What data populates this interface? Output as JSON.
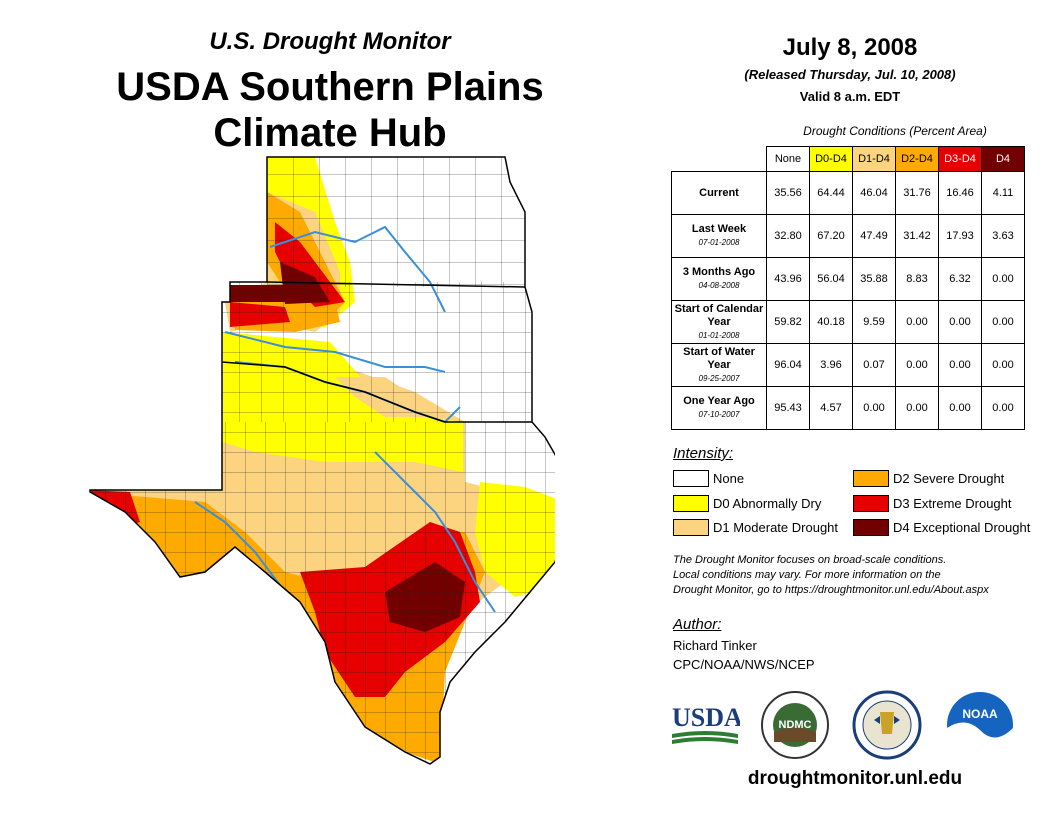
{
  "header": {
    "subtitle": "U.S. Drought Monitor",
    "title_line1": "USDA Southern Plains",
    "title_line2": "Climate Hub"
  },
  "date": "July 8, 2008",
  "released": "(Released Thursday, Jul. 10, 2008)",
  "valid": "Valid 8 a.m. EDT",
  "table": {
    "caption": "Drought Conditions (Percent Area)",
    "columns": [
      "None",
      "D0-D4",
      "D1-D4",
      "D2-D4",
      "D3-D4",
      "D4"
    ],
    "column_colors": [
      "#ffffff",
      "#ffff00",
      "#fcd37f",
      "#ffaa00",
      "#e60000",
      "#730000"
    ],
    "rows": [
      {
        "label": "Current",
        "date": "",
        "values": [
          "35.56",
          "64.44",
          "46.04",
          "31.76",
          "16.46",
          "4.11"
        ]
      },
      {
        "label": "Last Week",
        "date": "07-01-2008",
        "values": [
          "32.80",
          "67.20",
          "47.49",
          "31.42",
          "17.93",
          "3.63"
        ]
      },
      {
        "label": "3 Months Ago",
        "date": "04-08-2008",
        "values": [
          "43.96",
          "56.04",
          "35.88",
          "8.83",
          "6.32",
          "0.00"
        ]
      },
      {
        "label": "Start of Calendar Year",
        "date": "01-01-2008",
        "values": [
          "59.82",
          "40.18",
          "9.59",
          "0.00",
          "0.00",
          "0.00"
        ]
      },
      {
        "label": "Start of Water Year",
        "date": "09-25-2007",
        "values": [
          "96.04",
          "3.96",
          "0.07",
          "0.00",
          "0.00",
          "0.00"
        ]
      },
      {
        "label": "One Year Ago",
        "date": "07-10-2007",
        "values": [
          "95.43",
          "4.57",
          "0.00",
          "0.00",
          "0.00",
          "0.00"
        ]
      }
    ]
  },
  "legend": {
    "title": "Intensity:",
    "items": [
      {
        "label": "None",
        "color": "#ffffff"
      },
      {
        "label": "D0 Abnormally Dry",
        "color": "#ffff00"
      },
      {
        "label": "D1 Moderate Drought",
        "color": "#fcd37f"
      },
      {
        "label": "D2 Severe Drought",
        "color": "#ffaa00"
      },
      {
        "label": "D3 Extreme Drought",
        "color": "#e60000"
      },
      {
        "label": "D4 Exceptional Drought",
        "color": "#730000"
      }
    ]
  },
  "note": {
    "line1": "The Drought Monitor focuses on broad-scale conditions.",
    "line2": "Local conditions may vary. For more information on the",
    "line3": "Drought Monitor, go to https://droughtmonitor.unl.edu/About.aspx"
  },
  "author": {
    "label": "Author:",
    "name": "Richard Tinker",
    "org": "CPC/NOAA/NWS/NCEP"
  },
  "logos": {
    "usda": "USDA",
    "ndmc": "NDMC",
    "noaa": "NOAA"
  },
  "site": "droughtmonitor.unl.edu"
}
